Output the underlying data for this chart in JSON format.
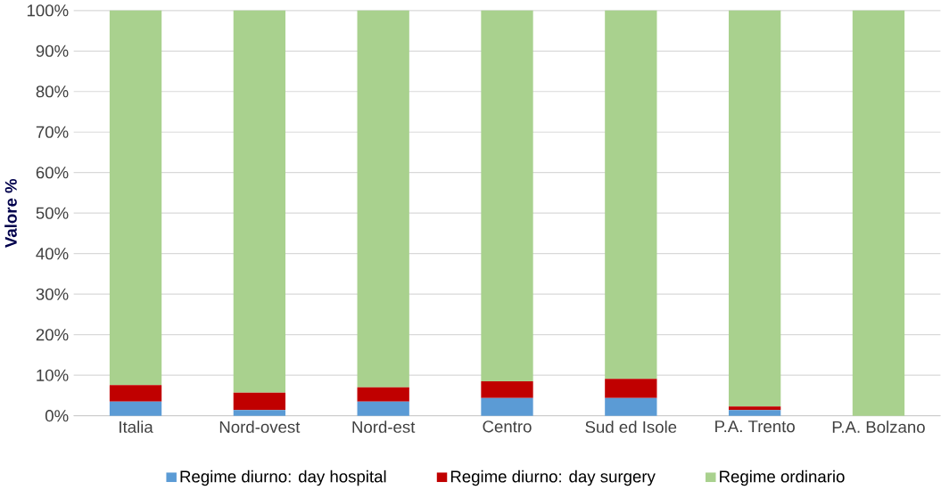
{
  "chart_data": {
    "type": "bar",
    "stacked": true,
    "ylabel": "Valore %",
    "categories": [
      "Italia",
      "Nord-ovest",
      "Nord-est",
      "Centro",
      "Sud ed Isole",
      "P.A. Trento",
      "P.A. Bolzano"
    ],
    "series": [
      {
        "name": "Regime diurno: day hospital",
        "color": "#5b9bd5",
        "values": [
          3.5,
          1.4,
          3.5,
          4.4,
          4.4,
          1.4,
          0
        ]
      },
      {
        "name": "Regime diurno: day surgery",
        "color": "#c00000",
        "values": [
          4.1,
          4.3,
          3.5,
          4.1,
          4.7,
          0.9,
          0
        ]
      },
      {
        "name": "Regime ordinario",
        "color": "#a9d18e",
        "values": [
          92.4,
          94.3,
          93.0,
          91.5,
          90.9,
          97.7,
          100
        ]
      }
    ],
    "ylim": [
      0,
      100
    ],
    "yticks": [
      {
        "value": 0,
        "label": "0%"
      },
      {
        "value": 10,
        "label": "10%"
      },
      {
        "value": 20,
        "label": "20%"
      },
      {
        "value": 30,
        "label": "30%"
      },
      {
        "value": 40,
        "label": "40%"
      },
      {
        "value": 50,
        "label": "50%"
      },
      {
        "value": 60,
        "label": "60%"
      },
      {
        "value": 70,
        "label": "70%"
      },
      {
        "value": 80,
        "label": "80%"
      },
      {
        "value": 90,
        "label": "90%"
      },
      {
        "value": 100,
        "label": "100%"
      }
    ],
    "grid": "y",
    "legend": "bottom"
  }
}
